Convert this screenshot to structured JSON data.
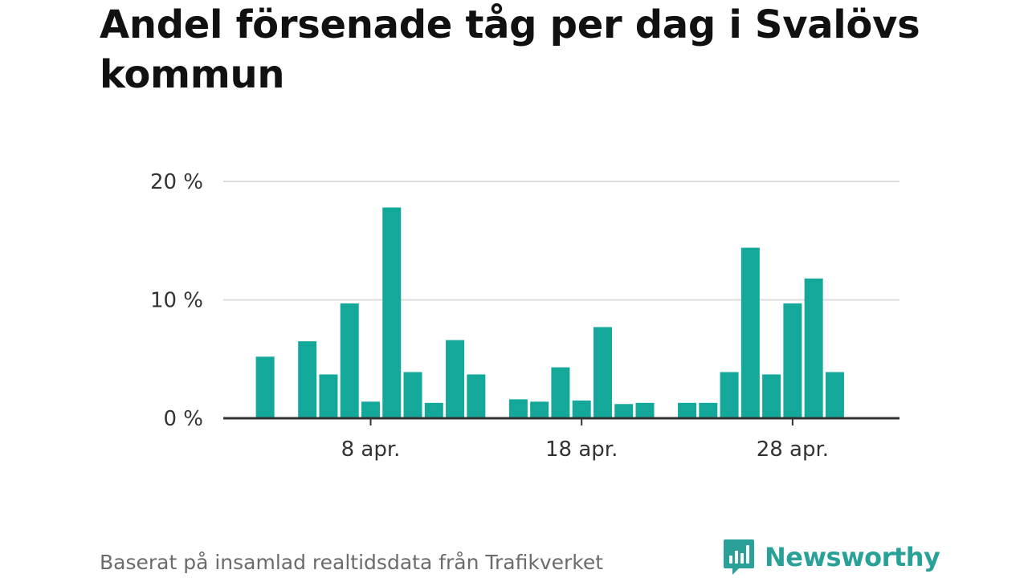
{
  "title": "Andel försenade tåg per dag i Svalövs kommun",
  "source": "Baserat på insamlad realtidsdata från Trafikverket",
  "brand": "Newsworthy",
  "colors": {
    "bar": "#14a89a",
    "grid": "#dddddd",
    "axis": "#333333",
    "brand": "#2aa198"
  },
  "chart_data": {
    "type": "bar",
    "x_unit": "day of April",
    "categories": [
      1,
      2,
      3,
      4,
      5,
      6,
      7,
      8,
      9,
      10,
      11,
      12,
      13,
      14,
      15,
      16,
      17,
      18,
      19,
      20,
      21,
      22,
      23,
      24,
      25,
      26,
      27,
      28,
      29,
      30
    ],
    "values": [
      null,
      null,
      5.2,
      null,
      6.5,
      3.7,
      9.7,
      1.4,
      17.8,
      3.9,
      1.3,
      6.6,
      3.7,
      null,
      1.6,
      1.4,
      4.3,
      1.5,
      7.7,
      1.2,
      1.3,
      null,
      1.3,
      1.3,
      3.9,
      14.4,
      3.7,
      9.7,
      11.8,
      3.9
    ],
    "ylim": [
      0,
      20
    ],
    "yticks": [
      0,
      10,
      20
    ],
    "ytick_labels": [
      "0 %",
      "10 %",
      "20 %"
    ],
    "xticks": [
      8,
      18,
      28
    ],
    "xtick_labels": [
      "8 apr.",
      "18 apr.",
      "28 apr."
    ],
    "grid": true,
    "legend": "none"
  }
}
